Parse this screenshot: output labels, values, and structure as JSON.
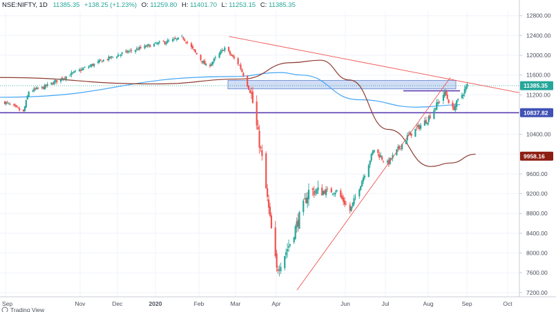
{
  "header": {
    "symbol": "NSE:NIFTY, 1D",
    "close": "11385.35",
    "change": "+138.25 (+1.23%)",
    "open_label": "O:",
    "open": "11259.80",
    "high_label": "H:",
    "high": "11401.70",
    "low_label": "L:",
    "low": "11253.15",
    "close_label": "C:",
    "close_val": "11385.35"
  },
  "footer": {
    "text": "Trading View"
  },
  "colors": {
    "up": "#26a69a",
    "down": "#ef5350",
    "ma_short": "#42a5f5",
    "ma_long": "#8d3b2f",
    "trend": "#ef5350",
    "support": "#5c3fb0",
    "resistance_zone": "#b3c7ee",
    "last_price": "#26a69a",
    "support_badge": "#3f51b5",
    "ma_badge": "#8d1e13"
  },
  "chart_data": {
    "type": "candlestick",
    "symbol": "NSE:NIFTY",
    "interval": "1D",
    "date_range": [
      "2019-09",
      "2020-08"
    ],
    "x_tick_labels": [
      "Sep",
      "Nov",
      "Dec",
      "2020",
      "Feb",
      "Mar",
      "Apr",
      "Jun",
      "Jul",
      "Aug",
      "Sep",
      "Oct"
    ],
    "y_tick_labels": [
      "12800.00",
      "12400.00",
      "12000.00",
      "11600.00",
      "11200.00",
      "10400.00",
      "10000.00",
      "9600.00",
      "9200.00",
      "8800.00",
      "8400.00",
      "8000.00",
      "7600.00",
      "7200.00"
    ],
    "ylim": [
      7100,
      12950
    ],
    "price_anchors": [
      {
        "date": "2019-09-02",
        "close": 11050
      },
      {
        "date": "2019-09-16",
        "close": 10850
      },
      {
        "date": "2019-09-20",
        "close": 11270
      },
      {
        "date": "2019-10-01",
        "close": 11350
      },
      {
        "date": "2019-10-20",
        "close": 11600
      },
      {
        "date": "2019-11-15",
        "close": 11900
      },
      {
        "date": "2019-12-01",
        "close": 12050
      },
      {
        "date": "2019-12-20",
        "close": 12200
      },
      {
        "date": "2020-01-14",
        "close": 12350
      },
      {
        "date": "2020-02-01",
        "close": 11750
      },
      {
        "date": "2020-02-14",
        "close": 12150
      },
      {
        "date": "2020-02-25",
        "close": 11800
      },
      {
        "date": "2020-03-05",
        "close": 11200
      },
      {
        "date": "2020-03-13",
        "close": 9900
      },
      {
        "date": "2020-03-24",
        "close": 7650
      },
      {
        "date": "2020-04-03",
        "close": 8200
      },
      {
        "date": "2020-04-17",
        "close": 9250
      },
      {
        "date": "2020-05-08",
        "close": 9250
      },
      {
        "date": "2020-05-18",
        "close": 8850
      },
      {
        "date": "2020-06-05",
        "close": 10100
      },
      {
        "date": "2020-06-15",
        "close": 9800
      },
      {
        "date": "2020-06-30",
        "close": 10350
      },
      {
        "date": "2020-07-15",
        "close": 10700
      },
      {
        "date": "2020-07-28",
        "close": 11250
      },
      {
        "date": "2020-08-03",
        "close": 10900
      },
      {
        "date": "2020-08-14",
        "close": 11385
      }
    ],
    "moving_averages": [
      {
        "name": "short",
        "color": "#42a5f5",
        "anchors": [
          [
            0,
            11150
          ],
          [
            120,
            11570
          ],
          [
            145,
            11650
          ],
          [
            155,
            11600
          ],
          [
            185,
            11100
          ],
          [
            215,
            10950
          ],
          [
            237,
            11000
          ]
        ]
      },
      {
        "name": "long",
        "color": "#8d3b2f",
        "anchors": [
          [
            0,
            11550
          ],
          [
            80,
            11420
          ],
          [
            125,
            11520
          ],
          [
            150,
            11850
          ],
          [
            165,
            11900
          ],
          [
            180,
            11500
          ],
          [
            200,
            10500
          ],
          [
            222,
            9750
          ],
          [
            232,
            9820
          ],
          [
            245,
            10000
          ]
        ],
        "last_value": "9958.16"
      }
    ],
    "support_level": 10837.82,
    "support_label": "10837.82",
    "last_price": 11385.35,
    "last_price_label": "11385.35",
    "ma_label": "9958.16",
    "resistance_zone": [
      11320,
      11490
    ],
    "consolidation_line": 11280,
    "trendlines": [
      {
        "name": "descending",
        "from": [
          118,
          12380
        ],
        "to": [
          260,
          11300
        ]
      },
      {
        "name": "ascending",
        "from": [
          153,
          7250
        ],
        "to": [
          232,
          11550
        ]
      }
    ]
  }
}
